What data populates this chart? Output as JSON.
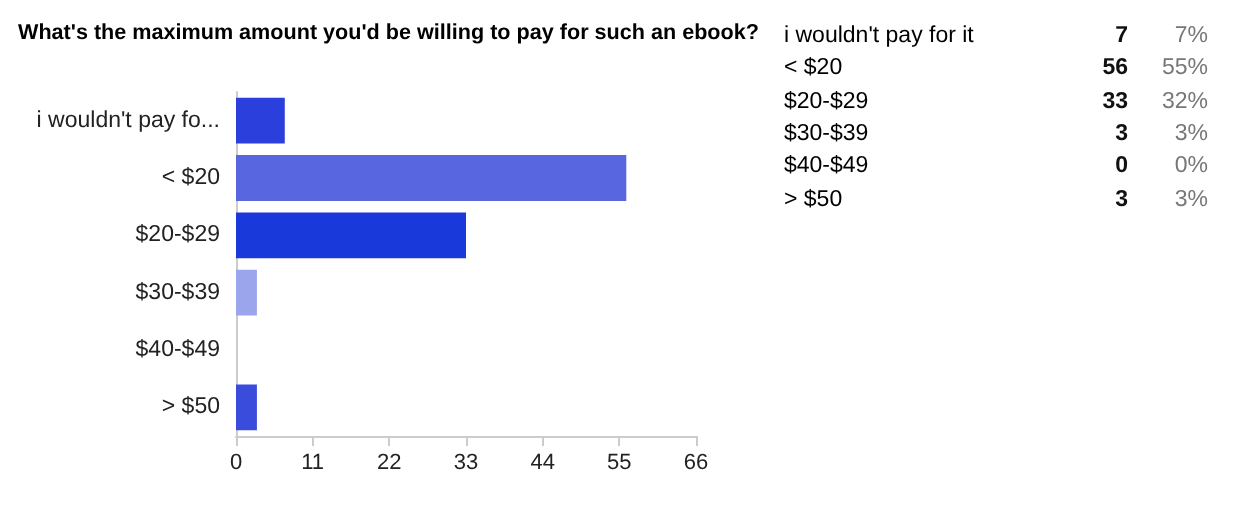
{
  "chart_data": [
    {
      "type": "bar",
      "title": "What's the maximum amount you'd be willing to pay for such an ebook?",
      "orientation": "horizontal",
      "categories": [
        "i wouldn't pay fo...",
        "< $20",
        "$20-$29",
        "$30-$39",
        "$40-$49",
        "> $50"
      ],
      "values": [
        7,
        56,
        33,
        3,
        0,
        3
      ],
      "colors": [
        "#2a3fdc",
        "#5866e0",
        "#1a39db",
        "#9aa5ec",
        "#3344dd",
        "#3a4cdc"
      ],
      "xlim": [
        0,
        66
      ],
      "xticks": [
        0,
        11,
        22,
        33,
        44,
        55,
        66
      ],
      "grid": false
    },
    {
      "type": "other",
      "categories": [
        "i wouldn't pay for it",
        "< $20",
        "$20-$29",
        "$30-$39",
        "$40-$49",
        "> $50"
      ],
      "data_labels": true,
      "values": [
        7,
        56,
        33,
        3,
        0,
        3
      ],
      "annotations": [
        "7%",
        "55%",
        "32%",
        "3%",
        "0%",
        "3%"
      ]
    }
  ]
}
